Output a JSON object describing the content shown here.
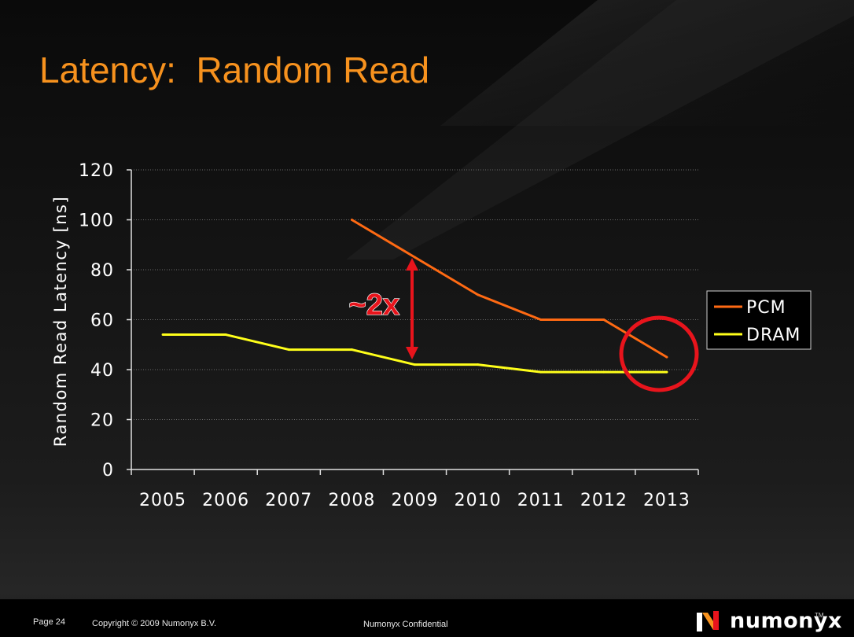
{
  "slide": {
    "title": "Latency:  Random Read",
    "annotation": "~2x"
  },
  "footer": {
    "page": "Page 24",
    "copyright": "Copyright © 2009 Numonyx B.V.",
    "confidential": "Numonyx Confidential",
    "logo_text": "numonyx",
    "logo_tm": "TM"
  },
  "colors": {
    "title": "#f7921e",
    "pcm": "#ff6a13",
    "dram": "#ffff1a",
    "arrow": "#e8141c",
    "circle": "#e8141c"
  },
  "chart_data": {
    "type": "line",
    "title": "",
    "xlabel": "",
    "ylabel": "Random Read Latency [ns]",
    "categories": [
      "2005",
      "2006",
      "2007",
      "2008",
      "2009",
      "2010",
      "2011",
      "2012",
      "2013"
    ],
    "ylim": [
      0,
      120
    ],
    "yticks": [
      0,
      20,
      40,
      60,
      80,
      100,
      120
    ],
    "grid": true,
    "legend_position": "right",
    "series": [
      {
        "name": "PCM",
        "values": [
          null,
          null,
          null,
          100,
          85,
          70,
          60,
          60,
          45
        ]
      },
      {
        "name": "DRAM",
        "values": [
          54,
          54,
          48,
          48,
          42,
          42,
          39,
          39,
          39
        ]
      }
    ]
  }
}
